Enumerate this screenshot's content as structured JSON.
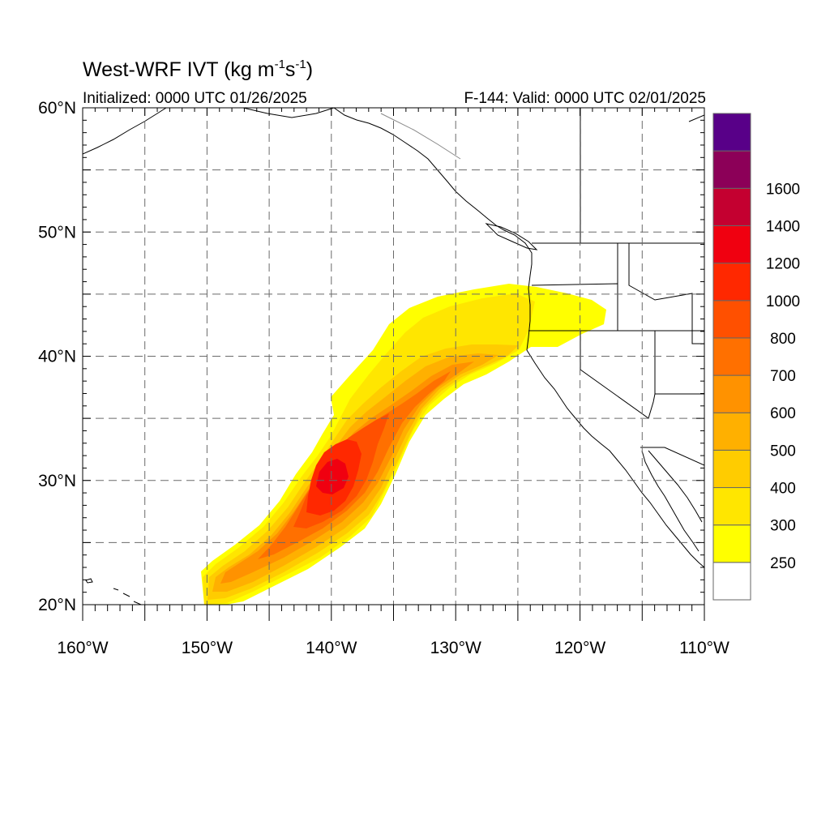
{
  "header": {
    "title_main": "West-WRF IVT (kg m",
    "title_exp1": "-1",
    "title_mid": "s",
    "title_exp2": "-1",
    "title_end": ")",
    "initialized": "Initialized: 0000 UTC 01/26/2025",
    "valid": "F-144: Valid: 0000 UTC 02/01/2025"
  },
  "axes": {
    "lon_labels": [
      "160°W",
      "150°W",
      "140°W",
      "130°W",
      "120°W",
      "110°W"
    ],
    "lat_labels": [
      "60°N",
      "50°N",
      "40°N",
      "30°N",
      "20°N"
    ],
    "lon_range": [
      -160,
      -110
    ],
    "lat_range": [
      20,
      60
    ],
    "grid": "dashed"
  },
  "colorbar": {
    "labels": [
      "250",
      "300",
      "400",
      "500",
      "600",
      "700",
      "800",
      "1000",
      "1200",
      "1400",
      "1600"
    ],
    "bin_colors": [
      "#ffffff",
      "#ffff00",
      "#ffe600",
      "#ffcc00",
      "#ffb000",
      "#ff9200",
      "#ff7000",
      "#ff5000",
      "#ff2800",
      "#f00010",
      "#c40030",
      "#8c0058",
      "#580088"
    ]
  },
  "legend_placement": "right",
  "field": {
    "variable": "IVT",
    "feature": "atmospheric river from ~22N 150W toward Oregon/California coast",
    "core_range_kgms": [
      1000,
      1200
    ]
  }
}
